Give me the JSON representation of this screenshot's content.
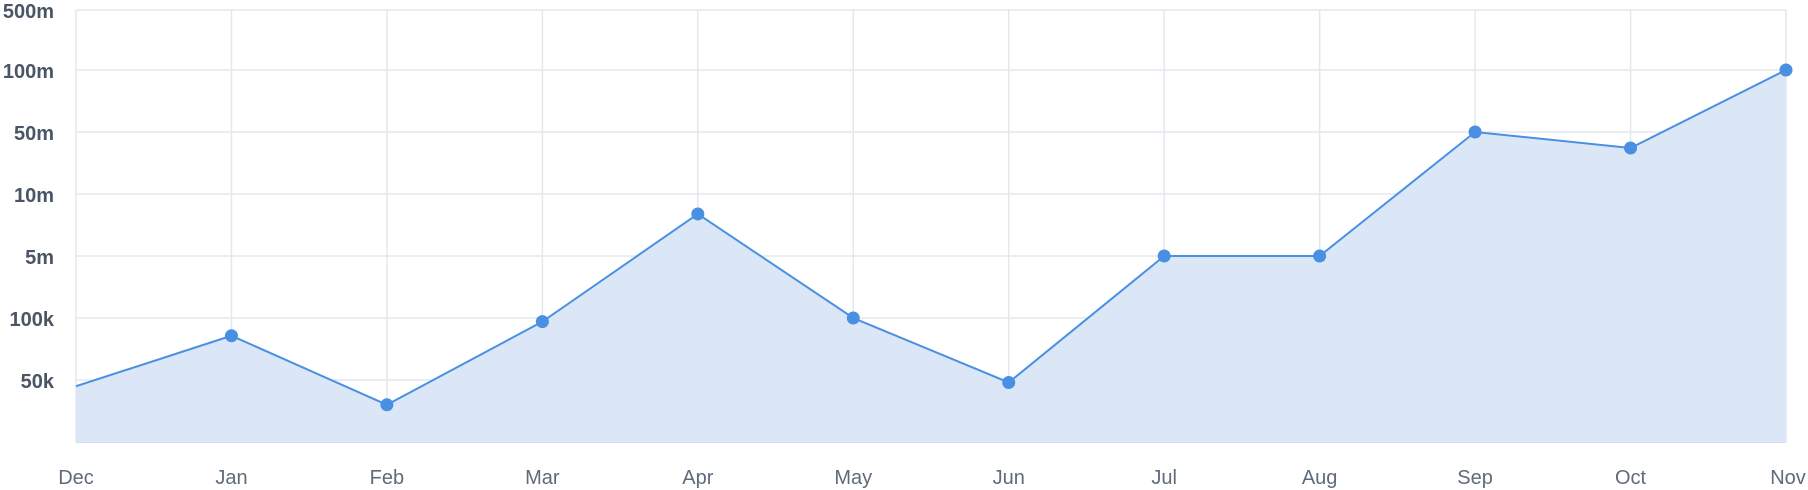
{
  "chart_data": {
    "type": "area",
    "title": "",
    "xlabel": "",
    "ylabel": "",
    "categories": [
      "Dec",
      "Jan",
      "Feb",
      "Mar",
      "Apr",
      "May",
      "Jun",
      "Jul",
      "Aug",
      "Sep",
      "Oct",
      "Nov"
    ],
    "y_tick_labels": [
      "500m",
      "100m",
      "50m",
      "10m",
      "5m",
      "100k",
      "50k"
    ],
    "y_scale": "categorical-log (tick spacing uniform between labeled values)",
    "series": [
      {
        "values": [
          45000,
          82000,
          30000,
          96000,
          8000000,
          100000,
          48000,
          5000000,
          5000000,
          50000000,
          33000000,
          100000000
        ]
      }
    ],
    "grid": true,
    "legend": "none",
    "colors": {
      "line": "#4a90e2",
      "fill": "#dbe7f7",
      "point": "#4a90e2"
    }
  }
}
